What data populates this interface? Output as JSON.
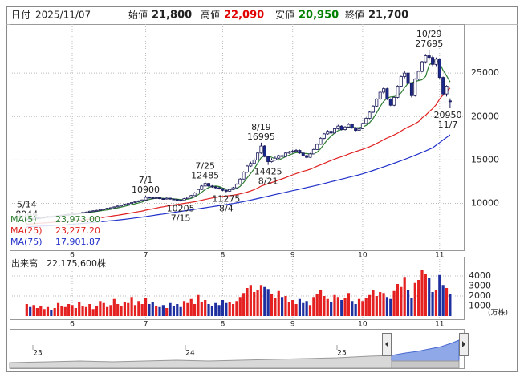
{
  "header": {
    "date_label": "日付",
    "date": "2025/11/07",
    "fields": [
      {
        "label": "始値",
        "value": "21,800"
      },
      {
        "label": "高値",
        "value": "22,090"
      },
      {
        "label": "安値",
        "value": "20,950"
      },
      {
        "label": "終値",
        "value": "21,700"
      }
    ]
  },
  "chart_data": {
    "type": "candlestick",
    "open": [
      8100,
      8200,
      8150,
      8300,
      8350,
      8400,
      8450,
      8500,
      8480,
      8550,
      8600,
      8650,
      8700,
      8750,
      8800,
      8850,
      8900,
      8950,
      9000,
      9100,
      9150,
      9200,
      9300,
      9350,
      9450,
      9500,
      9600,
      9700,
      9800,
      9900,
      10000,
      10100,
      10200,
      10300,
      10400,
      10700,
      10650,
      10600,
      10650,
      10550,
      10500,
      10600,
      10500,
      10450,
      10400,
      10350,
      10550,
      10700,
      10900,
      11200,
      11600,
      12000,
      12300,
      12000,
      11900,
      11800,
      11700,
      11500,
      11400,
      11600,
      11800,
      12200,
      12800,
      13600,
      14300,
      14600,
      15000,
      15800,
      16600,
      15400,
      14800,
      15000,
      15200,
      15500,
      15400,
      15800,
      15900,
      16000,
      16100,
      15800,
      15500,
      15300,
      15700,
      16200,
      16800,
      17500,
      18000,
      18300,
      18100,
      18600,
      18900,
      18500,
      18800,
      19100,
      18700,
      18400,
      18600,
      19200,
      19800,
      20500,
      21200,
      22000,
      22800,
      23200,
      22000,
      21300,
      22200,
      23500,
      24600,
      25000,
      23800,
      22400,
      24300,
      25200,
      26300,
      27000,
      26800,
      26000,
      26600,
      24500,
      22600,
      21800
    ],
    "high": [
      8250,
      8280,
      8330,
      8400,
      8450,
      8500,
      8560,
      8550,
      8600,
      8650,
      8700,
      8760,
      8800,
      8850,
      8900,
      8960,
      9000,
      9060,
      9150,
      9200,
      9260,
      9350,
      9400,
      9500,
      9560,
      9650,
      9750,
      9850,
      9950,
      10050,
      10150,
      10250,
      10350,
      10450,
      10900,
      10800,
      10750,
      10720,
      10700,
      10620,
      10680,
      10650,
      10560,
      10520,
      10480,
      10620,
      10780,
      10980,
      11300,
      11700,
      12100,
      12485,
      12350,
      12100,
      12000,
      11900,
      11750,
      11600,
      11700,
      11900,
      12300,
      12900,
      13700,
      14400,
      14800,
      15200,
      15900,
      16995,
      16700,
      15500,
      15200,
      15400,
      15600,
      15650,
      15900,
      16050,
      16150,
      16250,
      16200,
      15900,
      15600,
      15800,
      16300,
      16900,
      17600,
      18100,
      18450,
      18400,
      18700,
      19050,
      19000,
      18900,
      19250,
      19200,
      18800,
      18700,
      19300,
      19900,
      20600,
      21300,
      22100,
      22900,
      23400,
      23300,
      22100,
      22300,
      23600,
      24700,
      25300,
      25100,
      23900,
      24400,
      25300,
      26400,
      27200,
      27695,
      27000,
      26800,
      26700,
      24600,
      23600,
      22090
    ],
    "low": [
      8044,
      8100,
      8120,
      8260,
      8300,
      8350,
      8400,
      8420,
      8450,
      8500,
      8560,
      8600,
      8650,
      8700,
      8750,
      8800,
      8850,
      8900,
      8950,
      9050,
      9100,
      9150,
      9250,
      9300,
      9400,
      9450,
      9550,
      9650,
      9750,
      9850,
      9950,
      10050,
      10150,
      10250,
      10350,
      10550,
      10500,
      10520,
      10480,
      10420,
      10450,
      10430,
      10380,
      10300,
      10205,
      10300,
      10500,
      10650,
      10850,
      11150,
      11550,
      11950,
      11900,
      11800,
      11700,
      11600,
      11400,
      11275,
      11350,
      11550,
      11750,
      12150,
      12750,
      13500,
      14200,
      14500,
      14950,
      15700,
      15300,
      14425,
      14700,
      14900,
      15100,
      15300,
      15350,
      15700,
      15800,
      15900,
      15700,
      15400,
      15200,
      15250,
      15650,
      16150,
      16750,
      17400,
      17900,
      17950,
      18050,
      18500,
      18400,
      18400,
      18700,
      18600,
      18300,
      18300,
      18550,
      19100,
      19700,
      20400,
      21100,
      21900,
      22600,
      21900,
      21200,
      21200,
      22100,
      23400,
      24400,
      23700,
      22200,
      22300,
      24200,
      25100,
      26100,
      26500,
      25800,
      25800,
      24300,
      22400,
      22300,
      20950
    ],
    "close": [
      8200,
      8150,
      8300,
      8350,
      8400,
      8450,
      8500,
      8480,
      8550,
      8600,
      8650,
      8700,
      8750,
      8800,
      8850,
      8900,
      8950,
      9000,
      9100,
      9150,
      9200,
      9300,
      9350,
      9450,
      9500,
      9600,
      9700,
      9800,
      9900,
      10000,
      10100,
      10200,
      10300,
      10400,
      10700,
      10650,
      10600,
      10650,
      10550,
      10500,
      10600,
      10500,
      10450,
      10400,
      10350,
      10550,
      10700,
      10900,
      11200,
      11600,
      12000,
      12300,
      12000,
      11900,
      11800,
      11700,
      11500,
      11400,
      11600,
      11800,
      12200,
      12800,
      13600,
      14300,
      14600,
      15000,
      15800,
      16600,
      15400,
      14800,
      15000,
      15200,
      15500,
      15400,
      15800,
      15900,
      16000,
      16100,
      15800,
      15500,
      15300,
      15700,
      16200,
      16800,
      17500,
      18000,
      18300,
      18100,
      18600,
      18900,
      18500,
      18800,
      19100,
      18700,
      18400,
      18600,
      19200,
      19800,
      20500,
      21200,
      22000,
      22800,
      23200,
      22000,
      21300,
      22200,
      23500,
      24600,
      25000,
      23800,
      22400,
      24300,
      25200,
      26300,
      27000,
      26800,
      26000,
      26600,
      24500,
      22600,
      23500,
      21700
    ],
    "up_color": "#ffffff",
    "down_color": "#1a2a8c",
    "edge_color": "#1a1a5a",
    "ylim": [
      4600,
      30650
    ],
    "yticks": [
      10000,
      15000,
      20000,
      25000
    ],
    "grid": true,
    "xticks": [
      {
        "value": 13,
        "label": "6"
      },
      {
        "value": 34,
        "label": "7"
      },
      {
        "value": 56,
        "label": "8"
      },
      {
        "value": 76,
        "label": "9"
      },
      {
        "value": 96,
        "label": "10"
      },
      {
        "value": 118,
        "label": "11"
      }
    ],
    "moving_averages": [
      {
        "name": "MA(5)",
        "color": "#2e7d32",
        "value_label": "23,973.00",
        "values": [
          8150,
          8170,
          8200,
          8240,
          8280,
          8330,
          8390,
          8430,
          8480,
          8520,
          8560,
          8600,
          8650,
          8700,
          8750,
          8800,
          8850,
          8900,
          8950,
          9020,
          9080,
          9140,
          9200,
          9260,
          9320,
          9400,
          9480,
          9570,
          9660,
          9760,
          9860,
          9960,
          10060,
          10160,
          10340,
          10450,
          10530,
          10610,
          10630,
          10590,
          10580,
          10560,
          10520,
          10490,
          10440,
          10450,
          10490,
          10580,
          10740,
          10990,
          11280,
          11600,
          11820,
          11960,
          12000,
          11940,
          11780,
          11660,
          11600,
          11620,
          11700,
          11960,
          12400,
          12940,
          13460,
          13980,
          14620,
          15260,
          15480,
          15440,
          15320,
          15120,
          14980,
          15180,
          15380,
          15560,
          15720,
          15840,
          15860,
          15760,
          15740,
          15680,
          15700,
          15900,
          16300,
          16840,
          17360,
          17740,
          18100,
          18380,
          18480,
          18580,
          18760,
          18780,
          18700,
          18720,
          18800,
          18980,
          19300,
          19800,
          20420,
          21140,
          21740,
          22120,
          22260,
          22300,
          22440,
          22720,
          23320,
          23820,
          23900,
          24020,
          24140,
          24240,
          24620,
          25920,
          26260,
          26520,
          26180,
          25300,
          24700,
          23973
        ]
      },
      {
        "name": "MA(25)",
        "color": "#e02020",
        "value_label": "23,277.20",
        "values": [
          7600,
          7630,
          7660,
          7690,
          7720,
          7750,
          7780,
          7810,
          7840,
          7870,
          7900,
          7930,
          7960,
          7990,
          8020,
          8060,
          8100,
          8140,
          8190,
          8240,
          8290,
          8340,
          8400,
          8460,
          8520,
          8580,
          8640,
          8700,
          8770,
          8840,
          8910,
          8980,
          9050,
          9120,
          9220,
          9300,
          9380,
          9460,
          9540,
          9610,
          9680,
          9750,
          9820,
          9880,
          9940,
          10000,
          10060,
          10120,
          10190,
          10270,
          10360,
          10460,
          10540,
          10620,
          10700,
          10760,
          10810,
          10850,
          10900,
          10950,
          11010,
          11090,
          11190,
          11300,
          11430,
          11580,
          11770,
          11990,
          12140,
          12270,
          12400,
          12530,
          12680,
          12820,
          12970,
          13130,
          13280,
          13430,
          13570,
          13690,
          13800,
          13930,
          14100,
          14280,
          14450,
          14600,
          14780,
          14940,
          15100,
          15250,
          15380,
          15520,
          15680,
          15830,
          15960,
          16090,
          16220,
          16370,
          16530,
          16710,
          16900,
          17110,
          17330,
          17530,
          17700,
          17880,
          18090,
          18330,
          18580,
          18790,
          18960,
          19180,
          19420,
          19850,
          20150,
          20550,
          20900,
          21350,
          22000,
          22500,
          22900,
          23277.2
        ]
      },
      {
        "name": "MA(75)",
        "color": "#2030c8",
        "value_label": "17,901.87",
        "values": [
          7300,
          7320,
          7340,
          7360,
          7380,
          7400,
          7420,
          7440,
          7460,
          7480,
          7510,
          7540,
          7570,
          7600,
          7630,
          7660,
          7690,
          7720,
          7760,
          7800,
          7840,
          7880,
          7920,
          7960,
          8000,
          8040,
          8080,
          8120,
          8170,
          8220,
          8270,
          8320,
          8370,
          8420,
          8480,
          8540,
          8600,
          8660,
          8720,
          8780,
          8840,
          8900,
          8960,
          9020,
          9080,
          9140,
          9200,
          9260,
          9320,
          9380,
          9440,
          9500,
          9560,
          9620,
          9680,
          9740,
          9800,
          9860,
          9920,
          9990,
          10060,
          10130,
          10210,
          10290,
          10380,
          10470,
          10560,
          10650,
          10740,
          10830,
          10920,
          11010,
          11100,
          11190,
          11280,
          11370,
          11460,
          11550,
          11640,
          11730,
          11820,
          11910,
          12000,
          12090,
          12190,
          12290,
          12390,
          12490,
          12590,
          12690,
          12790,
          12890,
          12990,
          13090,
          13190,
          13290,
          13400,
          13530,
          13660,
          13790,
          13920,
          14060,
          14200,
          14340,
          14480,
          14620,
          14770,
          14920,
          15070,
          15220,
          15380,
          15540,
          15700,
          15870,
          16040,
          16220,
          16400,
          16700,
          17000,
          17300,
          17600,
          17901.87
        ]
      }
    ],
    "annotations": [
      {
        "label": "5/14",
        "value": 8044
      },
      {
        "label": "7/1",
        "value": 10900
      },
      {
        "label": "7/15",
        "value": 10205
      },
      {
        "label": "7/25",
        "value": 12485
      },
      {
        "label": "8/4",
        "value": 11275
      },
      {
        "label": "8/19",
        "value": 16995
      },
      {
        "label": "8/21",
        "value": 14425
      },
      {
        "label": "10/29",
        "value": 27695
      },
      {
        "label": "11/7",
        "value": 20950
      }
    ],
    "volume": {
      "type": "bar",
      "title": "出来高",
      "total_label": "22,175,600株",
      "unit": "(万株)",
      "up_color": "#e52020",
      "down_color": "#1e2fa0",
      "ylim": [
        0,
        5760
      ],
      "yticks": [
        1000,
        2000,
        3000,
        4000
      ],
      "values": [
        1200,
        900,
        1100,
        800,
        1000,
        700,
        900,
        600,
        800,
        1300,
        1000,
        900,
        1200,
        1100,
        800,
        1400,
        1000,
        900,
        1200,
        700,
        1000,
        1500,
        1300,
        900,
        1100,
        1700,
        1200,
        1000,
        1400,
        1300,
        1900,
        1100,
        1500,
        1200,
        1800,
        1200,
        1400,
        1000,
        900,
        1100,
        800,
        1300,
        1000,
        1200,
        900,
        1500,
        1300,
        1700,
        1200,
        2100,
        1400,
        1600,
        1200,
        1000,
        1300,
        1100,
        1600,
        1300,
        1400,
        1200,
        1500,
        1900,
        2300,
        2800,
        3100,
        2400,
        2600,
        3100,
        2900,
        2700,
        2200,
        1800,
        2500,
        1900,
        2000,
        1400,
        1600,
        1200,
        1700,
        1300,
        1500,
        1100,
        1900,
        2200,
        2600,
        2000,
        1700,
        1400,
        2100,
        1900,
        1600,
        1800,
        2300,
        1500,
        1200,
        1700,
        1500,
        1800,
        2100,
        2600,
        2000,
        2400,
        2300,
        1900,
        1700,
        2500,
        3200,
        2900,
        3900,
        2600,
        1800,
        3300,
        3600,
        4600,
        4200,
        3800,
        2400,
        2600,
        4100,
        3100,
        2800,
        2217.56
      ]
    },
    "navigator": {
      "labels": [
        "23",
        "24",
        "25"
      ]
    }
  }
}
